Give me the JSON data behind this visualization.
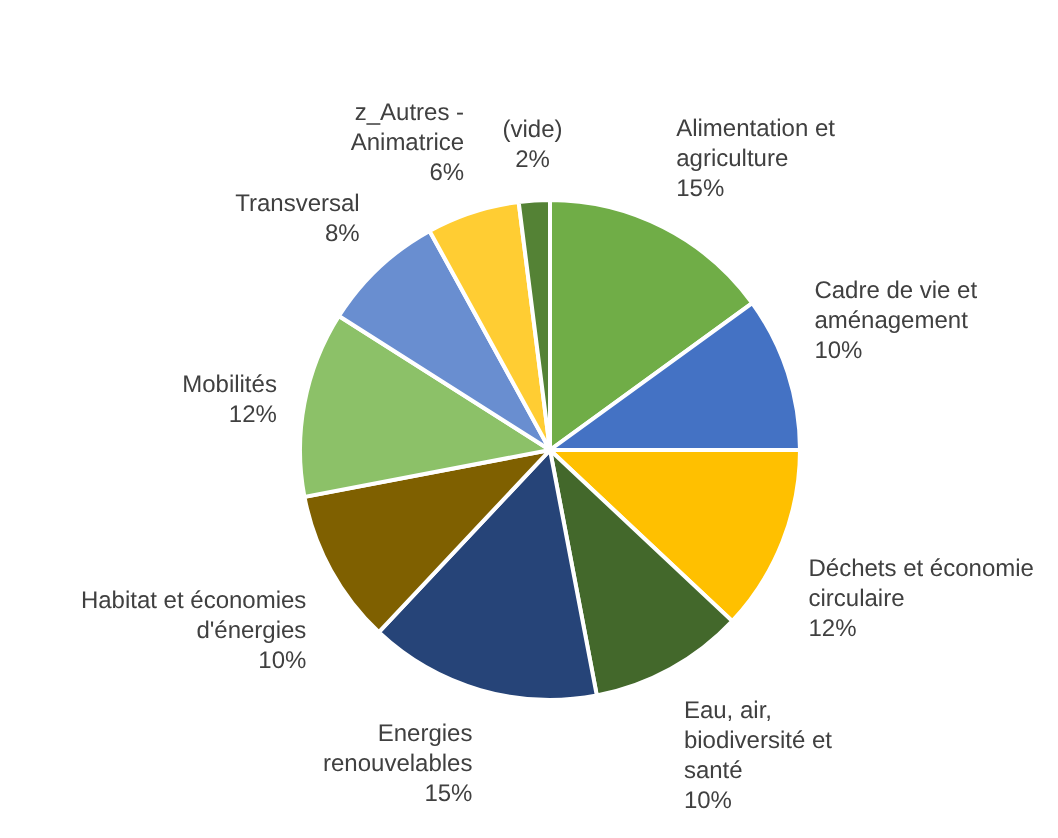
{
  "chart_data": {
    "type": "pie",
    "categories": [
      "Alimentation et agriculture",
      "Cadre de vie et aménagement",
      "Déchets et économie circulaire",
      "Eau, air, biodiversité et santé",
      "Energies renouvelables",
      "Habitat et économies d'énergies",
      "Mobilités",
      "Transversal",
      "z_Autres - Animatrice",
      "(vide)"
    ],
    "values": [
      15,
      10,
      12,
      10,
      15,
      10,
      12,
      8,
      6,
      2
    ],
    "value_labels": [
      "15%",
      "10%",
      "12%",
      "10%",
      "15%",
      "10%",
      "12%",
      "8%",
      "6%",
      "2%"
    ],
    "colors": [
      "#70ad47",
      "#4472c4",
      "#ffc000",
      "#43682b",
      "#264478",
      "#7f6000",
      "#8cc168",
      "#698ed0",
      "#ffcd33",
      "#548235"
    ],
    "legend": false
  }
}
